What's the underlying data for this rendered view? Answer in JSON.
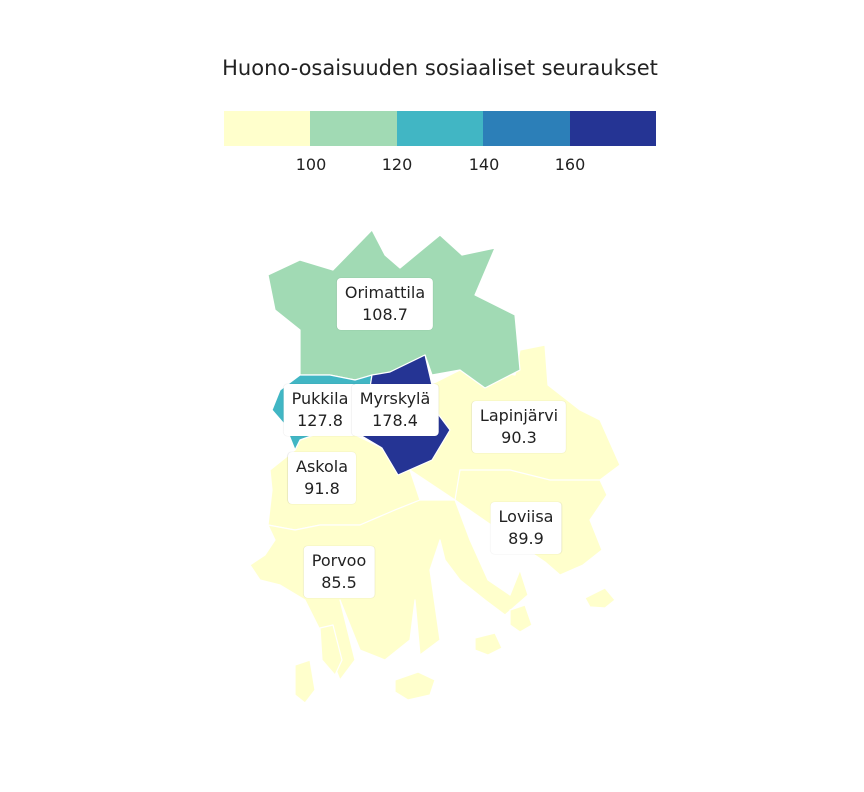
{
  "title": "Huono-osaisuuden sosiaaliset seuraukset",
  "legend": {
    "colors": [
      "#ffffcc",
      "#a1dab4",
      "#41b6c4",
      "#2c7fb8",
      "#253494"
    ],
    "ticks": [
      "100",
      "120",
      "140",
      "160"
    ]
  },
  "chart_data": {
    "type": "choropleth",
    "title": "Huono-osaisuuden sosiaaliset seuraukset",
    "breaks": [
      100,
      120,
      140,
      160
    ],
    "regions": [
      {
        "name": "Orimattila",
        "value": 108.7,
        "color": "#a1dab4"
      },
      {
        "name": "Pukkila",
        "value": 127.8,
        "color": "#41b6c4"
      },
      {
        "name": "Myrskylä",
        "value": 178.4,
        "color": "#253494"
      },
      {
        "name": "Lapinjärvi",
        "value": 90.3,
        "color": "#ffffcc"
      },
      {
        "name": "Askola",
        "value": 91.8,
        "color": "#ffffcc"
      },
      {
        "name": "Loviisa",
        "value": 89.9,
        "color": "#ffffcc"
      },
      {
        "name": "Porvoo",
        "value": 85.5,
        "color": "#ffffcc"
      }
    ]
  },
  "labels": {
    "orimattila": {
      "name": "Orimattila",
      "value": "108.7"
    },
    "pukkila": {
      "name": "Pukkila",
      "value": "127.8"
    },
    "myrskyla": {
      "name": "Myrskylä",
      "value": "178.4"
    },
    "lapinjarvi": {
      "name": "Lapinjärvi",
      "value": "90.3"
    },
    "askola": {
      "name": "Askola",
      "value": "91.8"
    },
    "loviisa": {
      "name": "Loviisa",
      "value": "89.9"
    },
    "porvoo": {
      "name": "Porvoo",
      "value": "85.5"
    }
  }
}
